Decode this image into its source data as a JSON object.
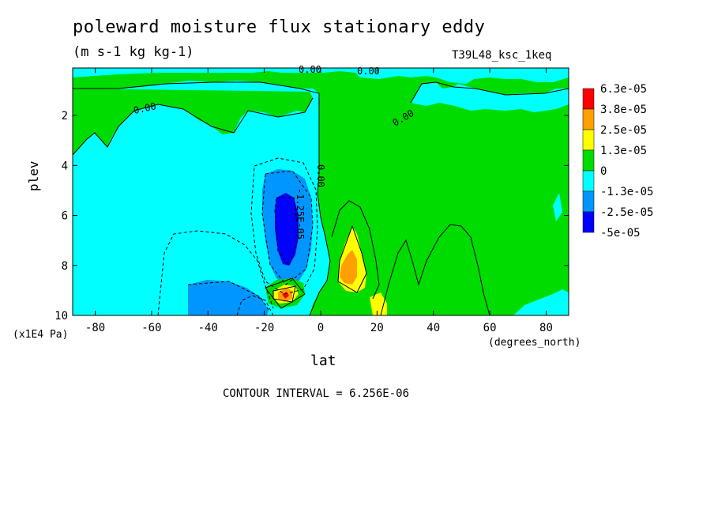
{
  "chart_data": {
    "type": "contour",
    "title": "poleward moisture flux stationary eddy",
    "units": "(m s-1 kg kg-1)",
    "run_id": "T39L48_ksc_1keq",
    "xlabel": "lat",
    "xunits": "(degrees_north)",
    "ylabel": "plev",
    "yunits": "(x1E4 Pa)",
    "contour_interval": "CONTOUR INTERVAL = 6.256E-06",
    "x_ticks": [
      "-80",
      "-60",
      "-40",
      "-20",
      "0",
      "20",
      "40",
      "60",
      "80"
    ],
    "x_tick_values": [
      -80,
      -60,
      -40,
      -20,
      0,
      20,
      40,
      60,
      80
    ],
    "y_ticks": [
      "2",
      "4",
      "6",
      "8",
      "10"
    ],
    "y_tick_values": [
      2,
      4,
      6,
      8,
      10
    ],
    "xlim": [
      -88,
      88
    ],
    "ylim": [
      10,
      0.1
    ],
    "legend": {
      "labels": [
        "6.3e-05",
        "3.8e-05",
        "2.5e-05",
        "1.3e-05",
        "0",
        "-1.3e-05",
        "-2.5e-05",
        "-5e-05"
      ],
      "colors": [
        "#ff0000",
        "#ffa000",
        "#ffff00",
        "#00dc00",
        "#00ffff",
        "#0096ff",
        "#0000ff"
      ],
      "placement": "right"
    },
    "contour_labels": [
      "0.00",
      "0.00",
      "0.00",
      "0.00",
      "0.00",
      "-1.25E-05"
    ],
    "colors": {
      "negative_strong": "#0000ff",
      "negative_mid": "#0096ff",
      "negative_weak": "#00ffff",
      "positive_weak": "#00dc00",
      "positive_mid": "#ffff00",
      "positive_strong": "#ffa000",
      "positive_max": "#ff0000"
    }
  }
}
